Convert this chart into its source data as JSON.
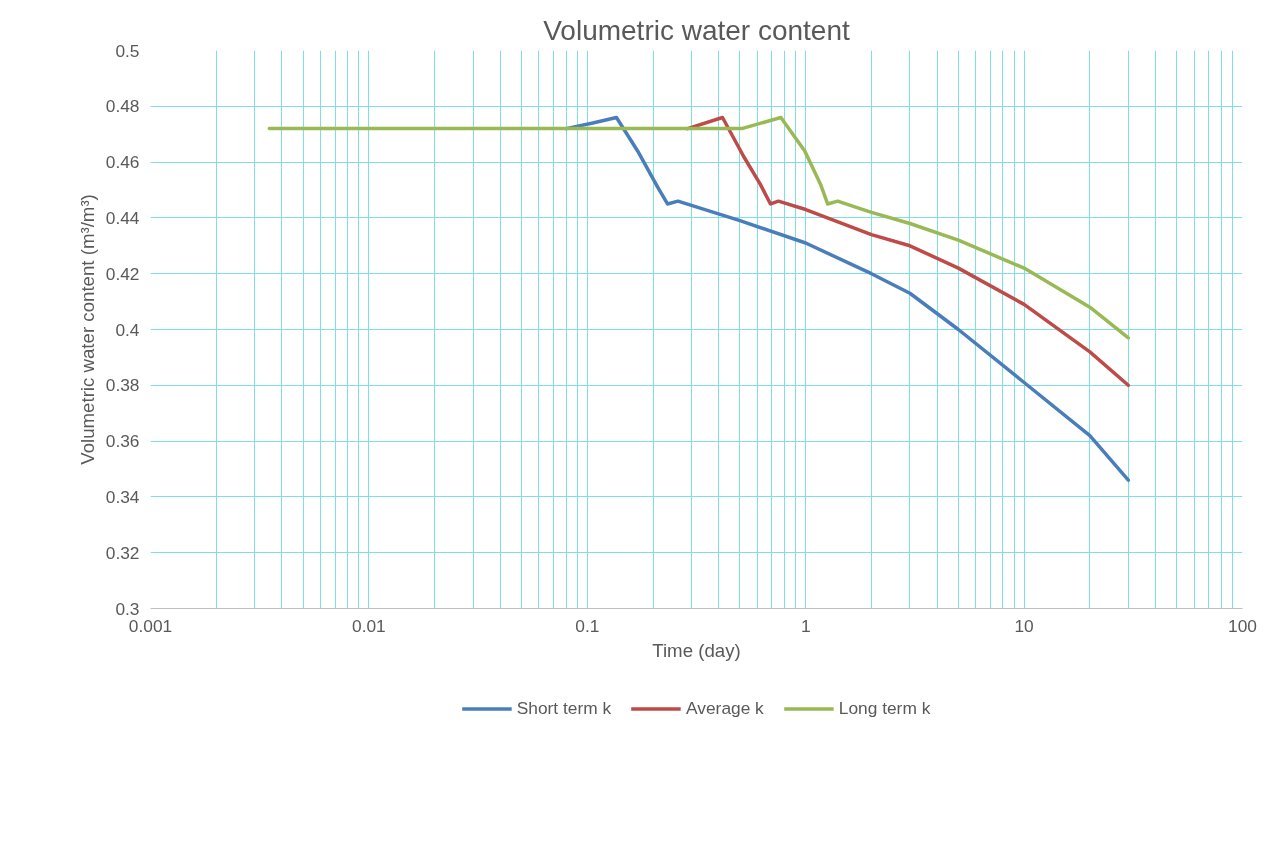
{
  "chart_data": {
    "type": "line",
    "title": "Volumetric water content",
    "xlabel": "Time (day)",
    "ylabel": "Volumetric water content (m³/m³)",
    "log": "x",
    "grid": true,
    "legend": "bottom",
    "line_style": "solid",
    "marker": "none",
    "xlim": [
      0.001,
      100
    ],
    "xticks": [
      0.001,
      0.01,
      0.1,
      1,
      10,
      100
    ],
    "ylim": [
      0.3,
      0.5
    ],
    "yticks": [
      0.3,
      0.32,
      0.34,
      0.36,
      0.38,
      0.4,
      0.42,
      0.44,
      0.46,
      0.48,
      0.5
    ],
    "series": [
      {
        "name": "Short term k",
        "color": "#4a7ebb",
        "x": [
          0.08,
          0.106,
          0.136,
          0.17,
          0.21,
          0.233,
          0.26,
          0.5,
          1,
          2,
          3,
          5,
          10,
          20,
          30
        ],
        "values": [
          0.472,
          0.474,
          0.476,
          0.464,
          0.451,
          0.445,
          0.446,
          0.439,
          0.431,
          0.42,
          0.413,
          0.4,
          0.381,
          0.362,
          0.346
        ]
      },
      {
        "name": "Average k",
        "color": "#be4b48",
        "x": [
          0.288,
          0.416,
          0.52,
          0.62,
          0.69,
          0.75,
          1,
          2,
          3,
          5,
          10,
          20,
          30
        ],
        "values": [
          0.472,
          0.476,
          0.462,
          0.452,
          0.445,
          0.446,
          0.443,
          0.434,
          0.43,
          0.422,
          0.409,
          0.392,
          0.38
        ]
      },
      {
        "name": "Long term k",
        "color": "#98b954",
        "x": [
          0.0035,
          0.01,
          0.1,
          0.51,
          0.77,
          0.99,
          1.17,
          1.26,
          1.4,
          2,
          3,
          5,
          10,
          20,
          30
        ],
        "values": [
          0.472,
          0.472,
          0.472,
          0.472,
          0.476,
          0.464,
          0.452,
          0.445,
          0.446,
          0.442,
          0.438,
          0.432,
          0.422,
          0.408,
          0.397
        ]
      }
    ]
  }
}
